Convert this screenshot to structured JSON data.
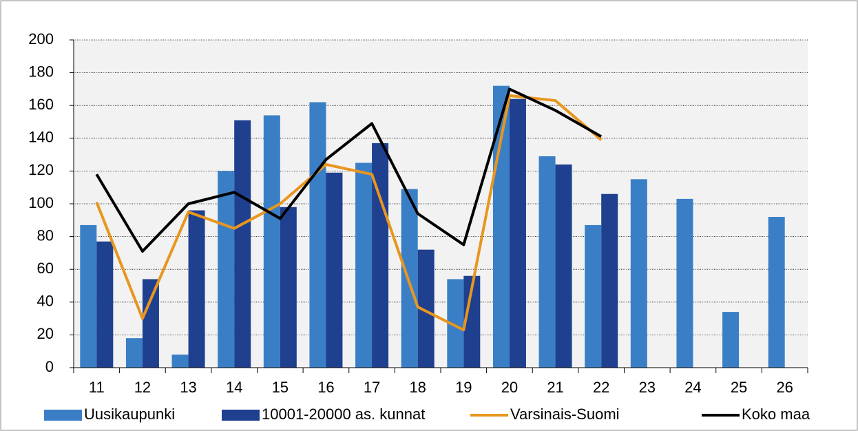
{
  "chart_data": {
    "type": "bar",
    "categories": [
      "11",
      "12",
      "13",
      "14",
      "15",
      "16",
      "17",
      "18",
      "19",
      "20",
      "21",
      "22",
      "23",
      "24",
      "25",
      "26"
    ],
    "series": [
      {
        "name": "Uusikaupunki",
        "type": "bar",
        "color": "#3a7fc6",
        "values": [
          87,
          18,
          8,
          120,
          154,
          162,
          125,
          109,
          54,
          172,
          129,
          87,
          115,
          103,
          34,
          92
        ]
      },
      {
        "name": "10001-20000 as. kunnat",
        "type": "bar",
        "color": "#1f3f8f",
        "values": [
          77,
          54,
          96,
          151,
          98,
          119,
          137,
          72,
          56,
          164,
          124,
          106,
          null,
          null,
          null,
          null
        ]
      },
      {
        "name": "Varsinais-Suomi",
        "type": "line",
        "color": "#e8961e",
        "values": [
          101,
          30,
          95,
          85,
          100,
          124,
          118,
          37,
          23,
          166,
          163,
          139,
          null,
          null,
          null,
          null
        ]
      },
      {
        "name": "Koko maa",
        "type": "line",
        "color": "#000000",
        "values": [
          118,
          71,
          100,
          107,
          91,
          127,
          149,
          94,
          75,
          170,
          157,
          141,
          null,
          null,
          null,
          null
        ]
      }
    ],
    "ylim": [
      0,
      200
    ],
    "yticks": [
      0,
      20,
      40,
      60,
      80,
      100,
      120,
      140,
      160,
      180,
      200
    ],
    "grid": true,
    "legend": "bottom"
  }
}
